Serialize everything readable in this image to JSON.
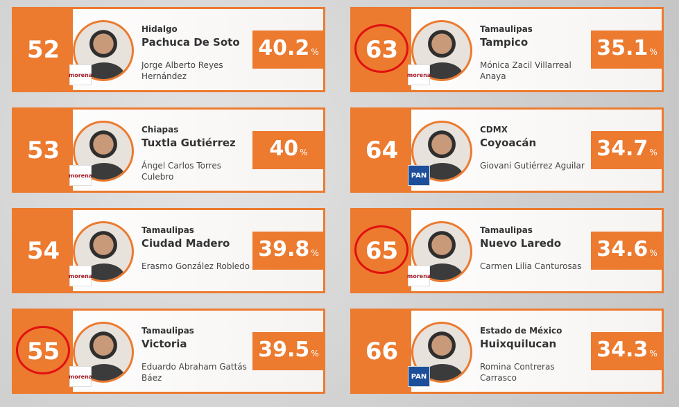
{
  "cards": [
    {
      "rank": "52",
      "region": "Hidalgo",
      "city": "Pachuca De Soto",
      "name": "Jorge Alberto Reyes Hernández",
      "party": "morena",
      "percent": "40.2",
      "unit": "%",
      "circled": false
    },
    {
      "rank": "53",
      "region": "Chiapas",
      "city": "Tuxtla Gutiérrez",
      "name": "Ángel Carlos Torres Culebro",
      "party": "morena",
      "percent": "40",
      "unit": "%",
      "circled": false
    },
    {
      "rank": "54",
      "region": "Tamaulipas",
      "city": "Ciudad Madero",
      "name": "Erasmo González Robledo",
      "party": "morena",
      "percent": "39.8",
      "unit": "%",
      "circled": false
    },
    {
      "rank": "55",
      "region": "Tamaulipas",
      "city": "Victoria",
      "name": "Eduardo Abraham Gattás Báez",
      "party": "morena",
      "percent": "39.5",
      "unit": "%",
      "circled": true
    },
    {
      "rank": "63",
      "region": "Tamaulipas",
      "city": "Tampico",
      "name": "Mónica Zacil Villarreal Anaya",
      "party": "morena",
      "percent": "35.1",
      "unit": "%",
      "circled": true
    },
    {
      "rank": "64",
      "region": "CDMX",
      "city": "Coyoacán",
      "name": "Giovani Gutiérrez Aguilar",
      "party": "PAN",
      "percent": "34.7",
      "unit": "%",
      "circled": false
    },
    {
      "rank": "65",
      "region": "Tamaulipas",
      "city": "Nuevo Laredo",
      "name": "Carmen Lilia Canturosas",
      "party": "morena",
      "percent": "34.6",
      "unit": "%",
      "circled": true
    },
    {
      "rank": "66",
      "region": "Estado de México",
      "city": "Huixquilucan",
      "name": "Romina Contreras Carrasco",
      "party": "PAN",
      "percent": "34.3",
      "unit": "%",
      "circled": false
    }
  ]
}
